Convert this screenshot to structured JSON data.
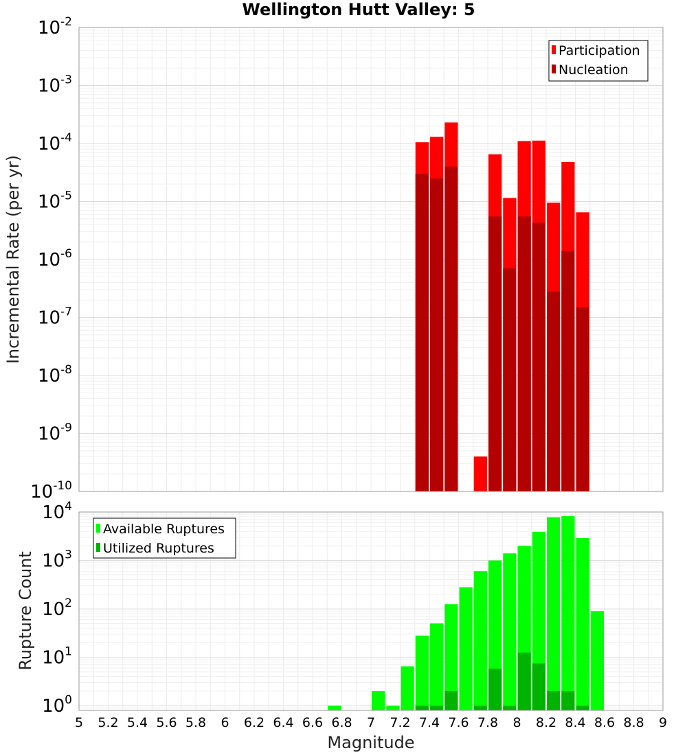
{
  "title": "Wellington Hutt Valley: 5",
  "chart_data": [
    {
      "type": "bar",
      "ylabel": "Incremental Rate (per yr)",
      "xlabel": "",
      "yscale": "log",
      "ylim": [
        1e-10,
        0.01
      ],
      "xlim": [
        5,
        9
      ],
      "bin_width": 0.1,
      "grid": true,
      "legend": "top-right",
      "overlay": true,
      "series": [
        {
          "name": "Participation",
          "color": "#ff0000",
          "x": [
            7.35,
            7.45,
            7.55,
            7.75,
            7.85,
            7.95,
            8.05,
            8.15,
            8.25,
            8.35,
            8.45
          ],
          "values": [
            0.000105,
            0.00013,
            0.00023,
            4e-10,
            6.5e-05,
            1.15e-05,
            0.00011,
            0.000112,
            9.5e-06,
            4.8e-05,
            6.5e-06
          ]
        },
        {
          "name": "Nucleation",
          "color": "#b30000",
          "x": [
            7.35,
            7.45,
            7.55,
            7.85,
            7.95,
            8.05,
            8.15,
            8.25,
            8.35,
            8.45
          ],
          "values": [
            3e-05,
            2.5e-05,
            4e-05,
            5.5e-06,
            7e-07,
            5.5e-06,
            4.3e-06,
            2.8e-07,
            1.4e-06,
            1.5e-07
          ]
        }
      ]
    },
    {
      "type": "bar",
      "ylabel": "Rupture Count",
      "xlabel": "Magnitude",
      "yscale": "log",
      "ylim": [
        0.8,
        10000
      ],
      "xlim": [
        5,
        9
      ],
      "bin_width": 0.1,
      "grid": true,
      "legend": "top-left",
      "overlay": true,
      "series": [
        {
          "name": "Available Ruptures",
          "color": "#00ff00",
          "x": [
            6.75,
            7.05,
            7.15,
            7.25,
            7.35,
            7.45,
            7.55,
            7.65,
            7.75,
            7.85,
            7.95,
            8.05,
            8.15,
            8.25,
            8.35,
            8.45,
            8.55
          ],
          "values": [
            1,
            2,
            1,
            6.5,
            28,
            50,
            125,
            280,
            600,
            1000,
            1400,
            2000,
            3900,
            7800,
            8200,
            2900,
            90
          ]
        },
        {
          "name": "Utilized Ruptures",
          "color": "#00b300",
          "x": [
            7.35,
            7.45,
            7.55,
            7.75,
            7.85,
            7.95,
            8.05,
            8.15,
            8.25,
            8.35,
            8.45
          ],
          "values": [
            1,
            1,
            2,
            1,
            5.8,
            1,
            12.5,
            7.5,
            2,
            2,
            1
          ]
        }
      ]
    }
  ],
  "x_ticks": [
    "5",
    "5.2",
    "5.4",
    "5.6",
    "5.8",
    "6",
    "6.2",
    "6.4",
    "6.6",
    "6.8",
    "7",
    "7.2",
    "7.4",
    "7.6",
    "7.8",
    "8",
    "8.2",
    "8.4",
    "8.6",
    "8.8",
    "9"
  ],
  "top_y_ticks": [
    {
      "base": "10",
      "exp": "-10",
      "value": 1e-10
    },
    {
      "base": "10",
      "exp": "-9",
      "value": 1e-09
    },
    {
      "base": "10",
      "exp": "-8",
      "value": 1e-08
    },
    {
      "base": "10",
      "exp": "-7",
      "value": 1e-07
    },
    {
      "base": "10",
      "exp": "-6",
      "value": 1e-06
    },
    {
      "base": "10",
      "exp": "-5",
      "value": 1e-05
    },
    {
      "base": "10",
      "exp": "-4",
      "value": 0.0001
    },
    {
      "base": "10",
      "exp": "-3",
      "value": 0.001
    },
    {
      "base": "10",
      "exp": "-2",
      "value": 0.01
    }
  ],
  "bottom_y_ticks": [
    {
      "base": "10",
      "exp": "0",
      "value": 1
    },
    {
      "base": "10",
      "exp": "1",
      "value": 10
    },
    {
      "base": "10",
      "exp": "2",
      "value": 100
    },
    {
      "base": "10",
      "exp": "3",
      "value": 1000
    },
    {
      "base": "10",
      "exp": "4",
      "value": 10000
    }
  ]
}
